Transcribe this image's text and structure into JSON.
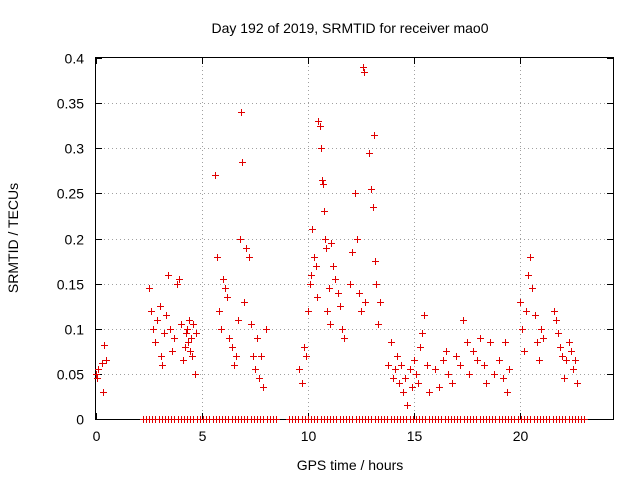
{
  "chart_data": {
    "type": "scatter",
    "title": "Day 192 of 2019, SRMTID for receiver mao0",
    "xlabel": "GPS time / hours",
    "ylabel": "SRMTID / TECUs",
    "xlim": [
      0,
      24.4
    ],
    "ylim": [
      0,
      0.4
    ],
    "xticks": [
      0,
      5,
      10,
      15,
      20
    ],
    "xtick_labels": [
      "0",
      "5",
      "10",
      "15",
      "20"
    ],
    "yticks": [
      0,
      0.05,
      0.1,
      0.15,
      0.2,
      0.25,
      0.3,
      0.35,
      0.4
    ],
    "ytick_labels": [
      "0",
      "0.05",
      "0.1",
      "0.15",
      "0.2",
      "0.25",
      "0.3",
      "0.35",
      "0.4"
    ],
    "grid": true,
    "marker": "+",
    "color": "#e00000",
    "series": [
      {
        "name": "SRMTID",
        "points": [
          [
            0.0,
            0.05
          ],
          [
            0.05,
            0.045
          ],
          [
            0.1,
            0.055
          ],
          [
            0.3,
            0.062
          ],
          [
            0.35,
            0.03
          ],
          [
            0.4,
            0.082
          ],
          [
            0.45,
            0.065
          ],
          [
            2.5,
            0.145
          ],
          [
            2.6,
            0.12
          ],
          [
            2.7,
            0.1
          ],
          [
            2.8,
            0.085
          ],
          [
            2.9,
            0.11
          ],
          [
            3.0,
            0.125
          ],
          [
            3.05,
            0.07
          ],
          [
            3.1,
            0.06
          ],
          [
            3.2,
            0.095
          ],
          [
            3.3,
            0.115
          ],
          [
            3.4,
            0.16
          ],
          [
            3.5,
            0.1
          ],
          [
            3.6,
            0.075
          ],
          [
            3.7,
            0.09
          ],
          [
            3.8,
            0.15
          ],
          [
            3.9,
            0.155
          ],
          [
            4.0,
            0.105
          ],
          [
            4.1,
            0.065
          ],
          [
            4.2,
            0.08
          ],
          [
            4.25,
            0.095
          ],
          [
            4.3,
            0.1
          ],
          [
            4.35,
            0.085
          ],
          [
            4.4,
            0.11
          ],
          [
            4.45,
            0.075
          ],
          [
            4.5,
            0.09
          ],
          [
            4.55,
            0.07
          ],
          [
            4.6,
            0.105
          ],
          [
            4.65,
            0.05
          ],
          [
            4.7,
            0.095
          ],
          [
            5.6,
            0.27
          ],
          [
            5.7,
            0.18
          ],
          [
            5.8,
            0.12
          ],
          [
            5.9,
            0.1
          ],
          [
            6.0,
            0.155
          ],
          [
            6.1,
            0.145
          ],
          [
            6.2,
            0.135
          ],
          [
            6.3,
            0.09
          ],
          [
            6.4,
            0.08
          ],
          [
            6.5,
            0.06
          ],
          [
            6.6,
            0.07
          ],
          [
            6.7,
            0.11
          ],
          [
            6.8,
            0.2
          ],
          [
            6.85,
            0.34
          ],
          [
            6.9,
            0.285
          ],
          [
            7.0,
            0.13
          ],
          [
            7.1,
            0.19
          ],
          [
            7.2,
            0.18
          ],
          [
            7.3,
            0.105
          ],
          [
            7.4,
            0.07
          ],
          [
            7.5,
            0.055
          ],
          [
            7.6,
            0.09
          ],
          [
            7.7,
            0.045
          ],
          [
            7.8,
            0.07
          ],
          [
            7.9,
            0.035
          ],
          [
            8.0,
            0.1
          ],
          [
            9.6,
            0.055
          ],
          [
            9.7,
            0.04
          ],
          [
            9.8,
            0.08
          ],
          [
            9.9,
            0.07
          ],
          [
            10.0,
            0.12
          ],
          [
            10.1,
            0.15
          ],
          [
            10.15,
            0.16
          ],
          [
            10.2,
            0.21
          ],
          [
            10.3,
            0.18
          ],
          [
            10.4,
            0.17
          ],
          [
            10.45,
            0.135
          ],
          [
            10.5,
            0.33
          ],
          [
            10.55,
            0.325
          ],
          [
            10.6,
            0.3
          ],
          [
            10.65,
            0.265
          ],
          [
            10.7,
            0.26
          ],
          [
            10.75,
            0.23
          ],
          [
            10.8,
            0.2
          ],
          [
            10.85,
            0.19
          ],
          [
            10.9,
            0.12
          ],
          [
            11.0,
            0.145
          ],
          [
            11.05,
            0.105
          ],
          [
            11.1,
            0.195
          ],
          [
            11.2,
            0.17
          ],
          [
            11.3,
            0.155
          ],
          [
            11.4,
            0.14
          ],
          [
            11.5,
            0.125
          ],
          [
            11.6,
            0.1
          ],
          [
            11.7,
            0.09
          ],
          [
            12.0,
            0.15
          ],
          [
            12.1,
            0.185
          ],
          [
            12.2,
            0.25
          ],
          [
            12.3,
            0.2
          ],
          [
            12.4,
            0.14
          ],
          [
            12.5,
            0.12
          ],
          [
            12.6,
            0.39
          ],
          [
            12.65,
            0.385
          ],
          [
            12.7,
            0.13
          ],
          [
            12.9,
            0.295
          ],
          [
            13.0,
            0.255
          ],
          [
            13.05,
            0.235
          ],
          [
            13.1,
            0.315
          ],
          [
            13.15,
            0.175
          ],
          [
            13.2,
            0.15
          ],
          [
            13.3,
            0.105
          ],
          [
            13.4,
            0.13
          ],
          [
            13.8,
            0.06
          ],
          [
            13.9,
            0.085
          ],
          [
            14.0,
            0.045
          ],
          [
            14.1,
            0.055
          ],
          [
            14.2,
            0.07
          ],
          [
            14.3,
            0.04
          ],
          [
            14.4,
            0.06
          ],
          [
            14.5,
            0.03
          ],
          [
            14.6,
            0.045
          ],
          [
            14.7,
            0.015
          ],
          [
            14.8,
            0.055
          ],
          [
            14.9,
            0.035
          ],
          [
            15.0,
            0.065
          ],
          [
            15.1,
            0.05
          ],
          [
            15.2,
            0.04
          ],
          [
            15.3,
            0.08
          ],
          [
            15.4,
            0.095
          ],
          [
            15.5,
            0.115
          ],
          [
            15.6,
            0.06
          ],
          [
            15.7,
            0.03
          ],
          [
            16.0,
            0.055
          ],
          [
            16.2,
            0.035
          ],
          [
            16.4,
            0.065
          ],
          [
            16.5,
            0.075
          ],
          [
            16.6,
            0.05
          ],
          [
            16.8,
            0.04
          ],
          [
            17.0,
            0.07
          ],
          [
            17.2,
            0.06
          ],
          [
            17.3,
            0.11
          ],
          [
            17.5,
            0.085
          ],
          [
            17.6,
            0.05
          ],
          [
            17.8,
            0.075
          ],
          [
            18.0,
            0.065
          ],
          [
            18.1,
            0.09
          ],
          [
            18.3,
            0.06
          ],
          [
            18.4,
            0.04
          ],
          [
            18.6,
            0.085
          ],
          [
            18.8,
            0.05
          ],
          [
            19.0,
            0.065
          ],
          [
            19.2,
            0.045
          ],
          [
            19.3,
            0.085
          ],
          [
            19.4,
            0.03
          ],
          [
            19.5,
            0.055
          ],
          [
            20.0,
            0.13
          ],
          [
            20.1,
            0.1
          ],
          [
            20.2,
            0.075
          ],
          [
            20.3,
            0.12
          ],
          [
            20.4,
            0.16
          ],
          [
            20.5,
            0.18
          ],
          [
            20.6,
            0.145
          ],
          [
            20.7,
            0.115
          ],
          [
            20.8,
            0.085
          ],
          [
            20.9,
            0.065
          ],
          [
            21.0,
            0.1
          ],
          [
            21.1,
            0.09
          ],
          [
            21.6,
            0.12
          ],
          [
            21.7,
            0.11
          ],
          [
            21.8,
            0.095
          ],
          [
            21.9,
            0.08
          ],
          [
            22.0,
            0.07
          ],
          [
            22.1,
            0.045
          ],
          [
            22.2,
            0.065
          ],
          [
            22.3,
            0.085
          ],
          [
            22.4,
            0.075
          ],
          [
            22.5,
            0.055
          ],
          [
            22.6,
            0.065
          ],
          [
            22.7,
            0.04
          ]
        ],
        "zero_value_times": [
          2.2,
          2.35,
          2.5,
          2.65,
          2.8,
          2.95,
          3.1,
          3.25,
          3.4,
          3.55,
          3.7,
          3.85,
          4.0,
          4.15,
          4.3,
          4.45,
          4.6,
          4.75,
          4.9,
          5.05,
          5.2,
          5.35,
          5.5,
          5.65,
          5.8,
          5.95,
          6.1,
          6.25,
          6.4,
          6.55,
          6.7,
          6.85,
          7.0,
          7.15,
          7.3,
          7.45,
          7.6,
          7.75,
          7.9,
          8.05,
          8.2,
          8.35,
          8.5,
          9.1,
          9.25,
          9.4,
          9.55,
          9.7,
          9.85,
          10.0,
          10.15,
          10.3,
          10.45,
          10.6,
          10.75,
          10.9,
          11.05,
          11.2,
          11.35,
          11.5,
          11.65,
          11.8,
          11.95,
          12.1,
          12.25,
          12.4,
          12.55,
          12.7,
          12.85,
          13.0,
          13.15,
          13.3,
          13.45,
          13.6,
          13.75,
          13.9,
          14.05,
          14.2,
          14.35,
          14.5,
          14.65,
          14.8,
          14.95,
          15.1,
          15.25,
          15.4,
          15.55,
          15.7,
          15.85,
          16.0,
          16.15,
          16.3,
          16.45,
          16.6,
          16.75,
          16.9,
          17.05,
          17.2,
          17.35,
          17.5,
          17.65,
          17.8,
          17.95,
          18.1,
          18.25,
          18.4,
          18.55,
          18.7,
          18.85,
          19.0,
          19.15,
          19.3,
          19.45,
          19.6,
          19.75,
          19.9,
          20.05,
          20.2,
          20.35,
          20.5,
          20.65,
          20.8,
          20.95,
          21.1,
          21.25,
          21.4,
          21.55,
          21.7,
          21.85,
          22.0,
          22.15,
          22.3,
          22.45,
          22.6,
          22.75,
          22.9,
          23.05
        ]
      }
    ]
  }
}
